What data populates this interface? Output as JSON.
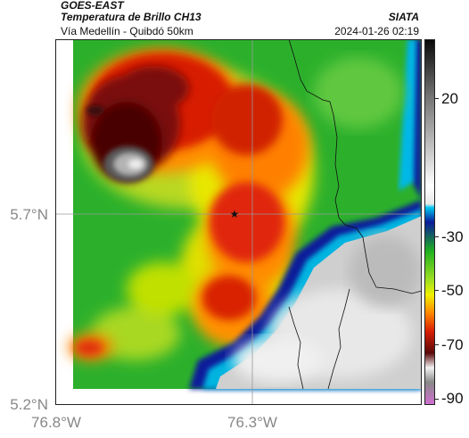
{
  "header": {
    "source": "GOES-EAST",
    "product": "Temperatura de Brillo CH13",
    "organization": "SIATA",
    "region": "Vía Medellín - Quibdó 50km",
    "datetime": "2024-01-26 02:19"
  },
  "axes": {
    "lat_ticks": [
      "5.7°N",
      "5.2°N"
    ],
    "lon_ticks": [
      "76.8°W",
      "76.3°W"
    ]
  },
  "colorbar": {
    "ticks": [
      "20",
      "-30",
      "-50",
      "-70",
      "-90"
    ],
    "values": [
      20,
      -30,
      -50,
      -70,
      -90
    ],
    "colors": {
      "warm_gray": "#e6e6e6",
      "cyan": "#00c8f0",
      "blue": "#0a1a9a",
      "green": "#20b020",
      "yellow": "#f0f000",
      "orange": "#ff8800",
      "red": "#d81e05",
      "dark_red": "#5a0a0a",
      "magenta": "#d070d0"
    }
  },
  "map": {
    "marker": "star-icon"
  }
}
